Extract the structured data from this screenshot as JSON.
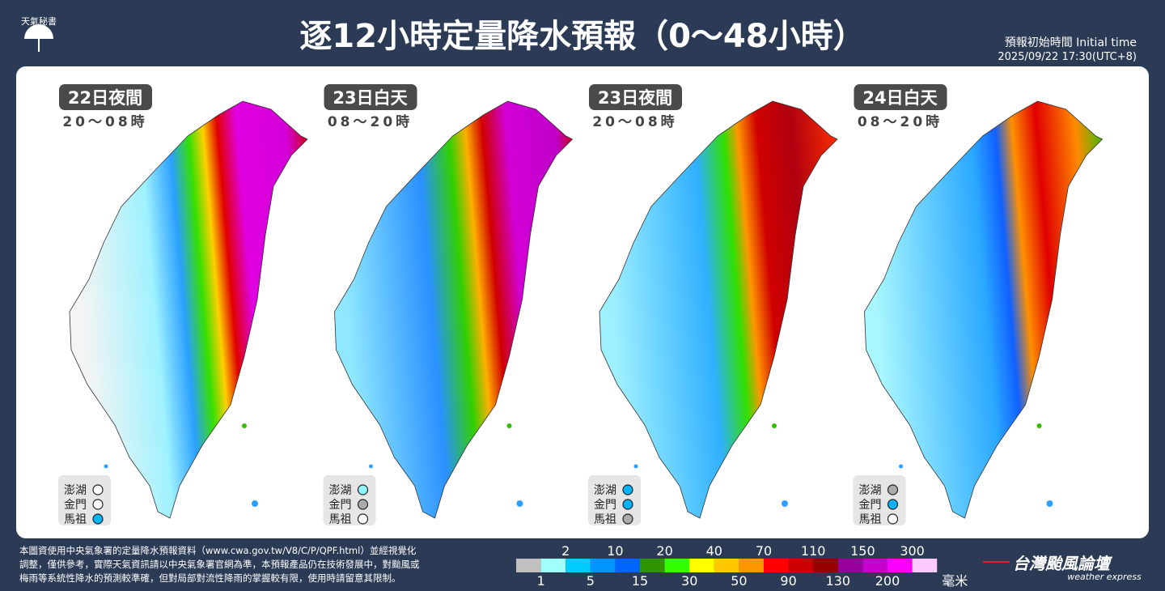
{
  "header": {
    "logo": "天氣秘書",
    "title": "逐12小時定量降水預報（0～48小時）",
    "initial_time_label": "預報初始時間 Initial time",
    "initial_time": "2025/09/22  17:30(UTC+8)"
  },
  "panels": [
    {
      "period": "22日夜間",
      "hours": "20～08時",
      "islands": [
        {
          "name": "澎湖",
          "color": "#ffffff"
        },
        {
          "name": "金門",
          "color": "#ffffff"
        },
        {
          "name": "馬祖",
          "color": "#00b4ff"
        }
      ]
    },
    {
      "period": "23日白天",
      "hours": "08～20時",
      "islands": [
        {
          "name": "澎湖",
          "color": "#8ff5ff"
        },
        {
          "name": "金門",
          "color": "#aaaaaa"
        },
        {
          "name": "馬祖",
          "color": "#ffffff"
        }
      ]
    },
    {
      "period": "23日夜間",
      "hours": "20～08時",
      "islands": [
        {
          "name": "澎湖",
          "color": "#00b4ff"
        },
        {
          "name": "金門",
          "color": "#00b4ff"
        },
        {
          "name": "馬祖",
          "color": "#aaaaaa"
        }
      ]
    },
    {
      "period": "24日白天",
      "hours": "08～20時",
      "islands": [
        {
          "name": "澎湖",
          "color": "#aaaaaa"
        },
        {
          "name": "金門",
          "color": "#00b4ff"
        },
        {
          "name": "馬祖",
          "color": "#ffffff"
        }
      ]
    }
  ],
  "legend": {
    "colors": [
      "#c0c0c0",
      "#a0fffa",
      "#00cdff",
      "#0096ff",
      "#0064ff",
      "#2f9600",
      "#32ff00",
      "#ffff00",
      "#ffc800",
      "#ff9600",
      "#ff0000",
      "#cc0000",
      "#990000",
      "#990099",
      "#c900cc",
      "#fb00ff",
      "#fdc9ff"
    ],
    "labels": [
      1,
      2,
      5,
      10,
      15,
      20,
      30,
      40,
      50,
      70,
      90,
      110,
      130,
      150,
      200,
      300
    ],
    "unit": "毫米"
  },
  "footer": {
    "note": [
      "本圖資使用中央氣象署的定量降水預報資料（www.cwa.gov.tw/V8/C/P/QPF.html）並經視覺化",
      "調整，僅供參考，實際天氣資訊請以中央氣象署官網為準，本預報產品仍在技術發展中，對颱風或",
      "梅雨等系統性降水的預測較準確，但對局部對流性降雨的掌握較有限，使用時請留意其限制。"
    ],
    "brand": "台灣颱風論壇",
    "brand_sub": "weather express"
  }
}
